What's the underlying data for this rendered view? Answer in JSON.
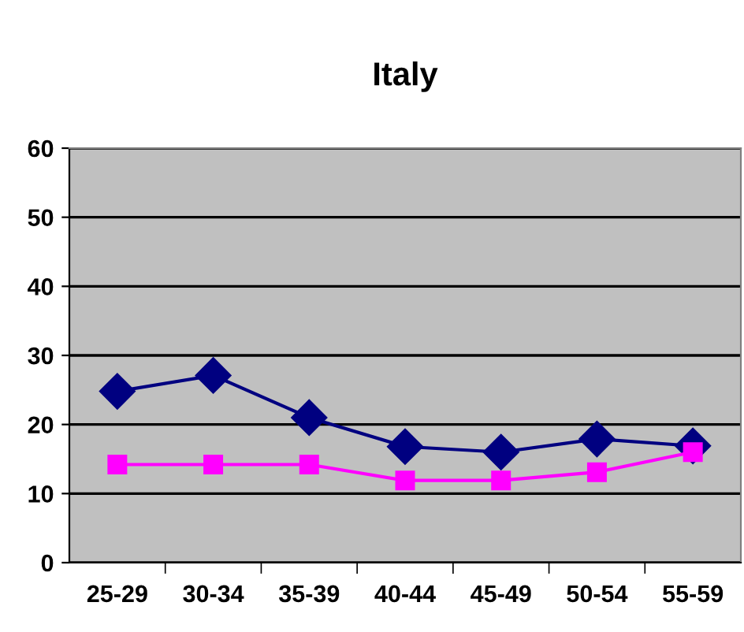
{
  "chart_data": {
    "type": "line",
    "title": "Italy",
    "categories": [
      "25-29",
      "30-34",
      "35-39",
      "40-44",
      "45-49",
      "50-54",
      "55-59"
    ],
    "series": [
      {
        "color": "#000080",
        "marker": "diamond",
        "values": [
          24.8,
          27.1,
          21,
          16.8,
          16,
          17.9,
          16.9
        ]
      },
      {
        "color": "#ff00ff",
        "marker": "square",
        "values": [
          14.2,
          14.2,
          14.2,
          11.9,
          11.9,
          13.1,
          16
        ]
      }
    ],
    "ylim": [
      0,
      60
    ],
    "yticks": [
      0,
      10,
      20,
      30,
      40,
      50,
      60
    ],
    "grid": "y",
    "legend": false
  }
}
